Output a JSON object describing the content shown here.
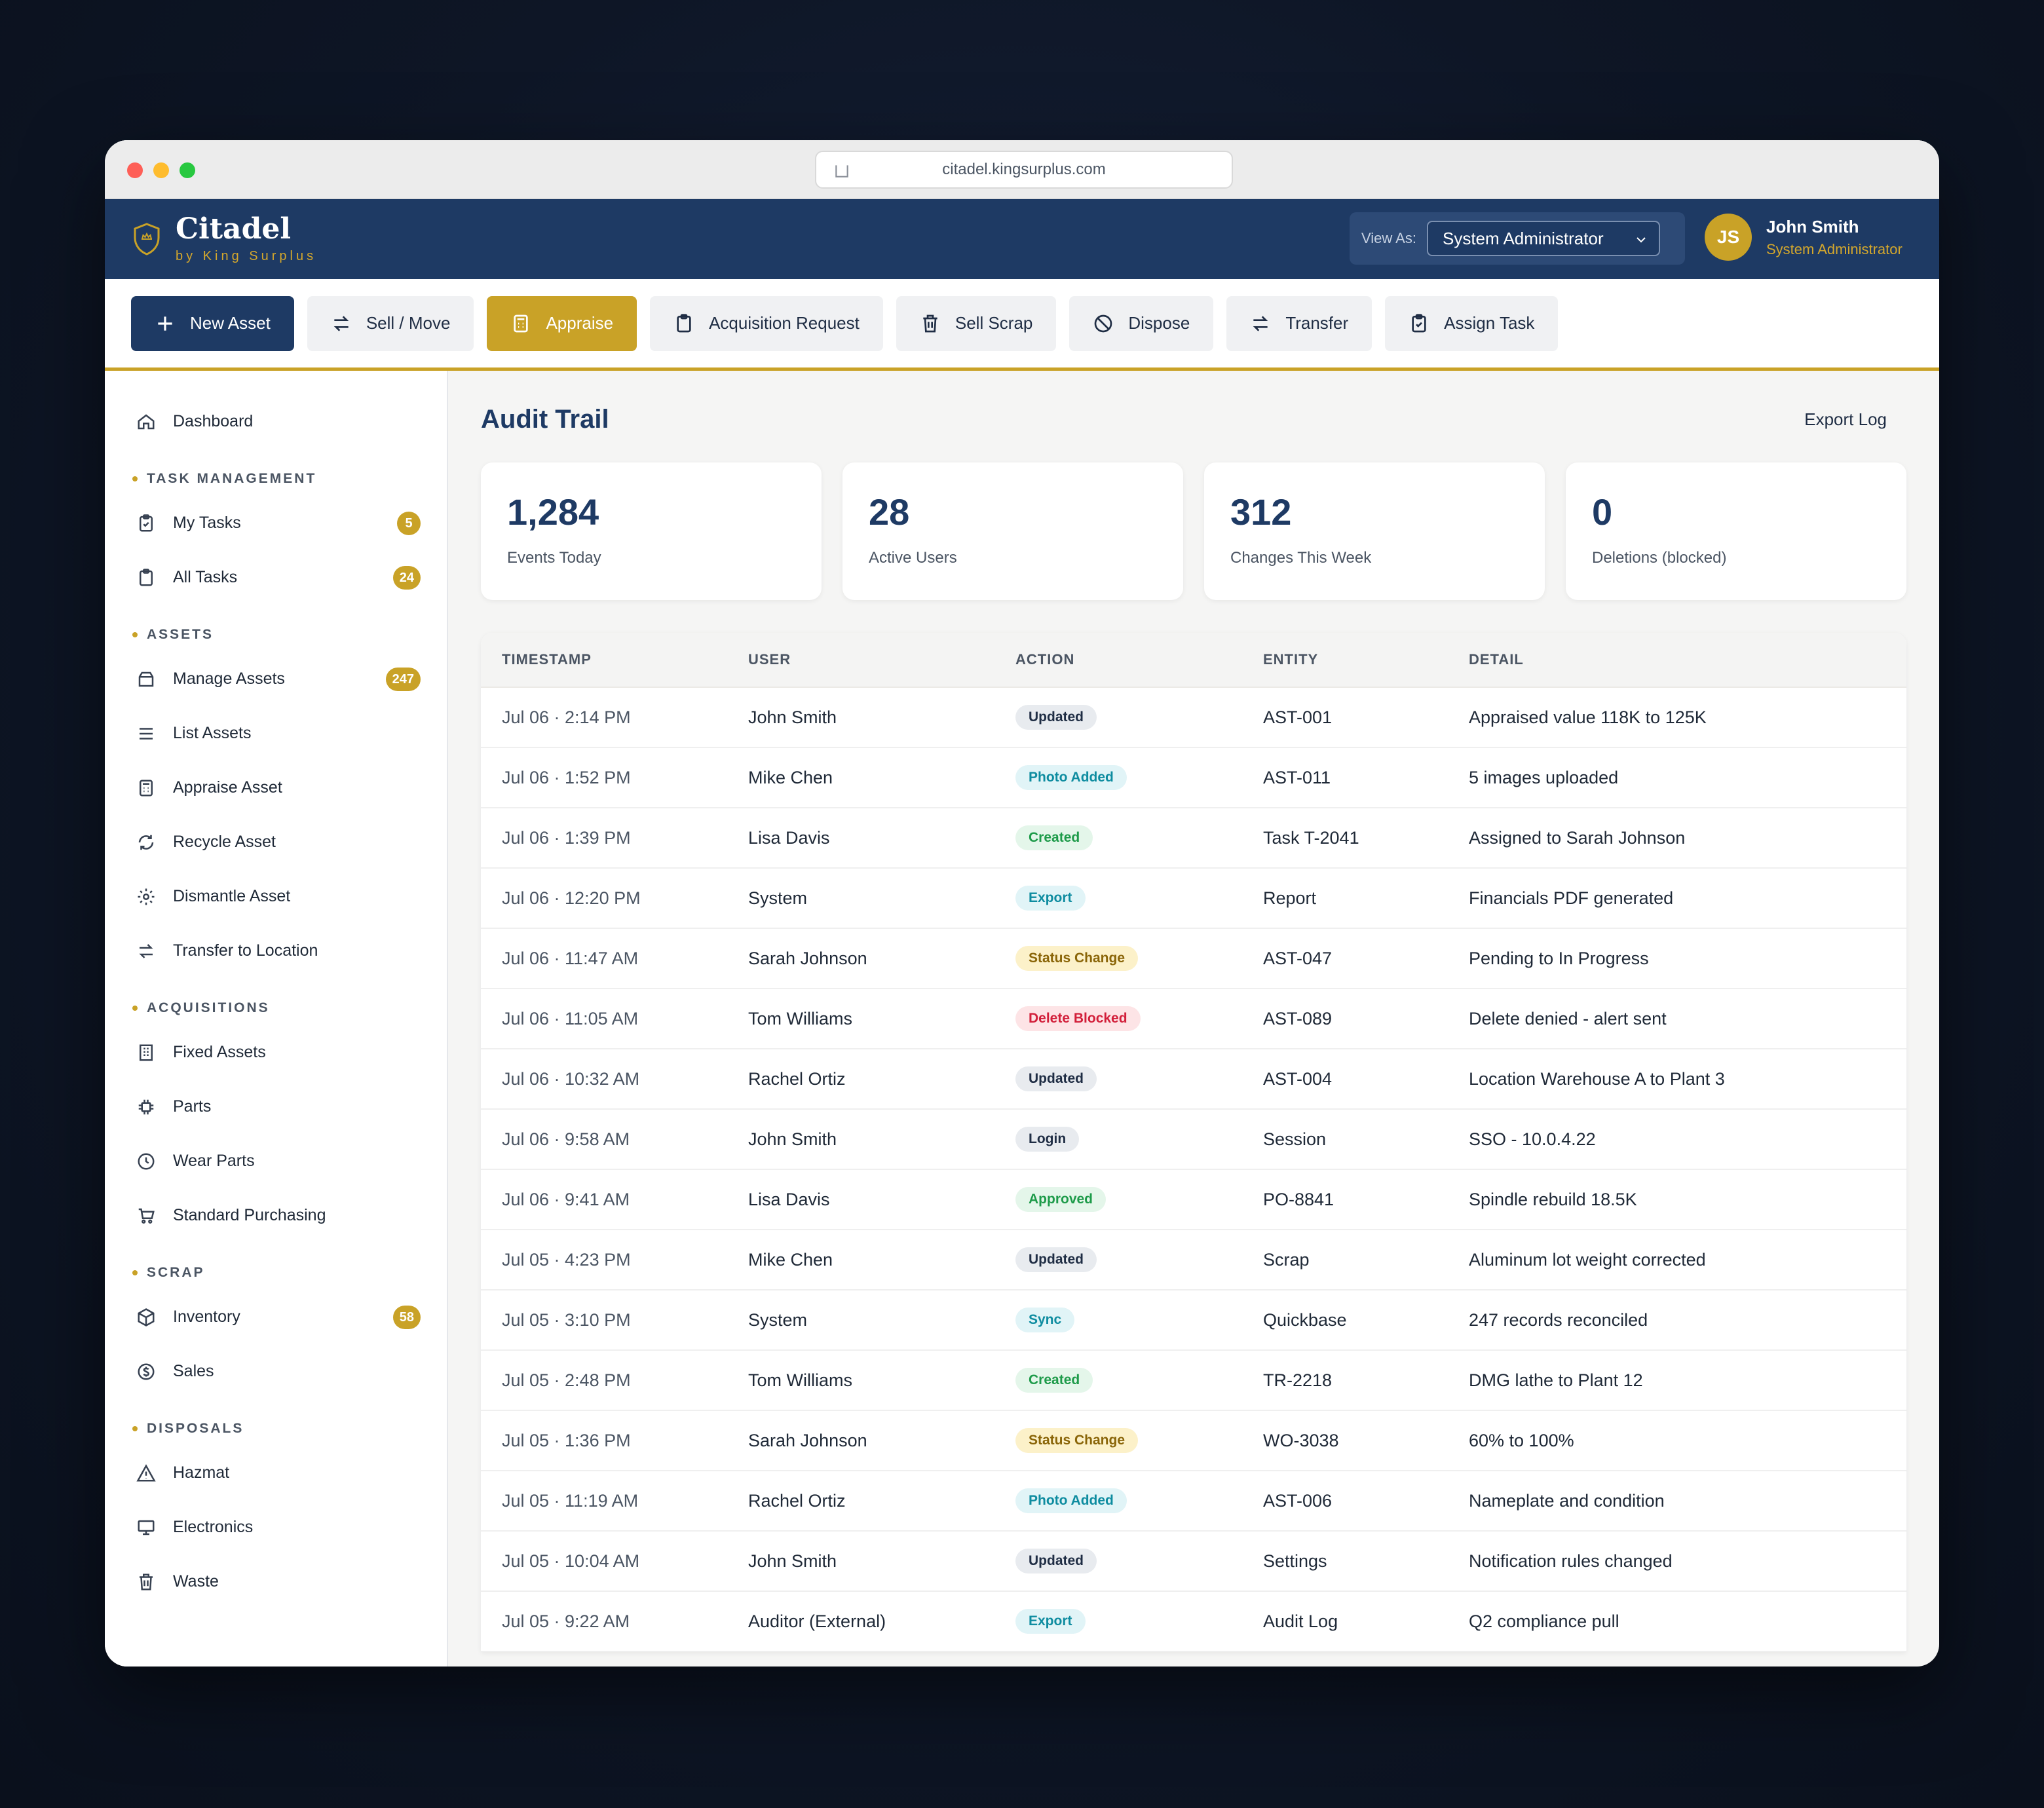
{
  "browser": {
    "url": "citadel.kingsurplus.com"
  },
  "brand": {
    "name": "Citadel",
    "sub": "by King Surplus"
  },
  "header": {
    "view_as_label": "View As:",
    "view_as_value": "System Administrator",
    "user": {
      "initials": "JS",
      "name": "John Smith",
      "role": "System Administrator"
    }
  },
  "toolbar": {
    "new_asset": "New Asset",
    "sell_move": "Sell / Move",
    "appraise": "Appraise",
    "acquisition_request": "Acquisition Request",
    "sell_scrap": "Sell Scrap",
    "dispose": "Dispose",
    "transfer": "Transfer",
    "assign_task": "Assign Task"
  },
  "sidebar": {
    "dashboard": "Dashboard",
    "sections": {
      "task_management": "TASK MANAGEMENT",
      "assets": "ASSETS",
      "acquisitions": "ACQUISITIONS",
      "scrap": "SCRAP",
      "disposals": "DISPOSALS"
    },
    "items": {
      "my_tasks": {
        "label": "My Tasks",
        "badge": "5"
      },
      "all_tasks": {
        "label": "All Tasks",
        "badge": "24"
      },
      "manage_assets": {
        "label": "Manage Assets",
        "badge": "247"
      },
      "list_assets": {
        "label": "List Assets"
      },
      "appraise_asset": {
        "label": "Appraise Asset"
      },
      "recycle_asset": {
        "label": "Recycle Asset"
      },
      "dismantle_asset": {
        "label": "Dismantle Asset"
      },
      "transfer_location": {
        "label": "Transfer to Location"
      },
      "fixed_assets": {
        "label": "Fixed Assets"
      },
      "parts": {
        "label": "Parts"
      },
      "wear_parts": {
        "label": "Wear Parts"
      },
      "standard_purchasing": {
        "label": "Standard Purchasing"
      },
      "inventory": {
        "label": "Inventory",
        "badge": "58"
      },
      "sales": {
        "label": "Sales"
      },
      "hazmat": {
        "label": "Hazmat"
      },
      "electronics": {
        "label": "Electronics"
      },
      "waste": {
        "label": "Waste"
      }
    }
  },
  "page": {
    "title": "Audit Trail",
    "export_label": "Export Log",
    "stats": [
      {
        "value": "1,284",
        "label": "Events Today"
      },
      {
        "value": "28",
        "label": "Active Users"
      },
      {
        "value": "312",
        "label": "Changes This Week"
      },
      {
        "value": "0",
        "label": "Deletions (blocked)"
      }
    ],
    "table": {
      "columns": [
        "TIMESTAMP",
        "USER",
        "ACTION",
        "ENTITY",
        "DETAIL"
      ],
      "rows": [
        {
          "ts": "Jul 06 · 2:14 PM",
          "user": "John Smith",
          "action": "Updated",
          "entity": "AST-001",
          "detail": "Appraised value 118K to 125K"
        },
        {
          "ts": "Jul 06 · 1:52 PM",
          "user": "Mike Chen",
          "action": "Photo Added",
          "entity": "AST-011",
          "detail": "5 images uploaded"
        },
        {
          "ts": "Jul 06 · 1:39 PM",
          "user": "Lisa Davis",
          "action": "Created",
          "entity": "Task T-2041",
          "detail": "Assigned to Sarah Johnson"
        },
        {
          "ts": "Jul 06 · 12:20 PM",
          "user": "System",
          "action": "Export",
          "entity": "Report",
          "detail": "Financials PDF generated"
        },
        {
          "ts": "Jul 06 · 11:47 AM",
          "user": "Sarah Johnson",
          "action": "Status Change",
          "entity": "AST-047",
          "detail": "Pending to In Progress"
        },
        {
          "ts": "Jul 06 · 11:05 AM",
          "user": "Tom Williams",
          "action": "Delete Blocked",
          "entity": "AST-089",
          "detail": "Delete denied - alert sent"
        },
        {
          "ts": "Jul 06 · 10:32 AM",
          "user": "Rachel Ortiz",
          "action": "Updated",
          "entity": "AST-004",
          "detail": "Location Warehouse A to Plant 3"
        },
        {
          "ts": "Jul 06 · 9:58 AM",
          "user": "John Smith",
          "action": "Login",
          "entity": "Session",
          "detail": "SSO - 10.0.4.22"
        },
        {
          "ts": "Jul 06 · 9:41 AM",
          "user": "Lisa Davis",
          "action": "Approved",
          "entity": "PO-8841",
          "detail": "Spindle rebuild 18.5K"
        },
        {
          "ts": "Jul 05 · 4:23 PM",
          "user": "Mike Chen",
          "action": "Updated",
          "entity": "Scrap",
          "detail": "Aluminum lot weight corrected"
        },
        {
          "ts": "Jul 05 · 3:10 PM",
          "user": "System",
          "action": "Sync",
          "entity": "Quickbase",
          "detail": "247 records reconciled"
        },
        {
          "ts": "Jul 05 · 2:48 PM",
          "user": "Tom Williams",
          "action": "Created",
          "entity": "TR-2218",
          "detail": "DMG lathe to Plant 12"
        },
        {
          "ts": "Jul 05 · 1:36 PM",
          "user": "Sarah Johnson",
          "action": "Status Change",
          "entity": "WO-3038",
          "detail": "60% to 100%"
        },
        {
          "ts": "Jul 05 · 11:19 AM",
          "user": "Rachel Ortiz",
          "action": "Photo Added",
          "entity": "AST-006",
          "detail": "Nameplate and condition"
        },
        {
          "ts": "Jul 05 · 10:04 AM",
          "user": "John Smith",
          "action": "Updated",
          "entity": "Settings",
          "detail": "Notification rules changed"
        },
        {
          "ts": "Jul 05 · 9:22 AM",
          "user": "Auditor (External)",
          "action": "Export",
          "entity": "Audit Log",
          "detail": "Q2 compliance pull"
        }
      ]
    }
  },
  "pill_colors": {
    "Updated": "gray",
    "Login": "gray",
    "Photo Added": "teal",
    "Export": "teal",
    "Sync": "teal",
    "Created": "green",
    "Approved": "green",
    "Status Change": "yellow",
    "Delete Blocked": "red"
  }
}
